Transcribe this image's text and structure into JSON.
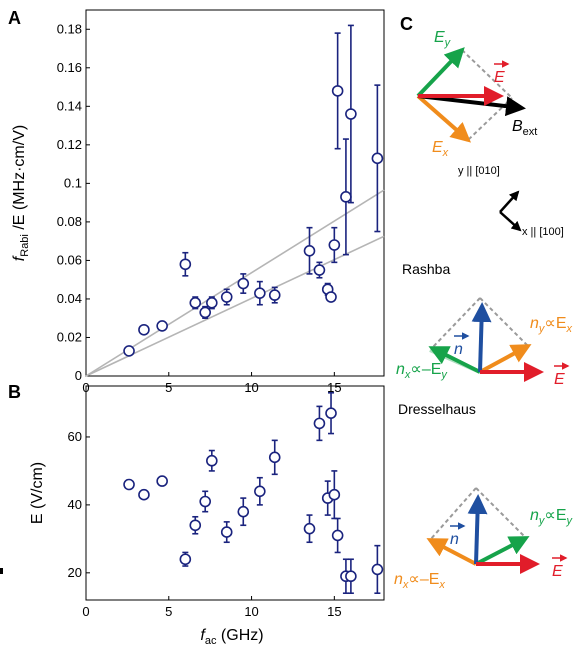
{
  "panel_labels": {
    "a": "A",
    "b": "B",
    "c": "C"
  },
  "chart_data": [
    {
      "type": "scatter",
      "panel": "A",
      "xlim": [
        0,
        18
      ],
      "ylim": [
        0,
        0.19
      ],
      "xticks": [
        0,
        5,
        10,
        15
      ],
      "yticks": [
        0,
        0.02,
        0.04,
        0.06,
        0.08,
        0.1,
        0.12,
        0.14,
        0.16,
        0.18
      ],
      "ytick_labels": [
        "0",
        "0.02",
        "0.04",
        "0.06",
        "0.08",
        "0.1",
        "0.12",
        "0.14",
        "0.16",
        "0.18"
      ],
      "xtick_labels": [
        "0",
        "5",
        "10",
        "15"
      ],
      "ylabel_pre": "f",
      "ylabel_sub": "Rabi",
      "ylabel_post": " /E (MHz·cm/V)",
      "points": [
        {
          "x": 2.6,
          "y": 0.013,
          "err": 0.0
        },
        {
          "x": 3.5,
          "y": 0.024,
          "err": 0.0
        },
        {
          "x": 4.6,
          "y": 0.026,
          "err": 0.0
        },
        {
          "x": 6.0,
          "y": 0.058,
          "err": 0.006
        },
        {
          "x": 6.6,
          "y": 0.038,
          "err": 0.003
        },
        {
          "x": 7.2,
          "y": 0.033,
          "err": 0.003
        },
        {
          "x": 7.6,
          "y": 0.038,
          "err": 0.003
        },
        {
          "x": 8.5,
          "y": 0.041,
          "err": 0.004
        },
        {
          "x": 9.5,
          "y": 0.048,
          "err": 0.005
        },
        {
          "x": 10.5,
          "y": 0.043,
          "err": 0.006
        },
        {
          "x": 11.4,
          "y": 0.042,
          "err": 0.004
        },
        {
          "x": 13.5,
          "y": 0.065,
          "err": 0.012
        },
        {
          "x": 14.1,
          "y": 0.055,
          "err": 0.004
        },
        {
          "x": 14.6,
          "y": 0.045,
          "err": 0.003
        },
        {
          "x": 14.8,
          "y": 0.041,
          "err": 0.002
        },
        {
          "x": 15.0,
          "y": 0.068,
          "err": 0.009
        },
        {
          "x": 15.2,
          "y": 0.148,
          "err": 0.03
        },
        {
          "x": 15.7,
          "y": 0.093,
          "err": 0.03
        },
        {
          "x": 16.0,
          "y": 0.136,
          "err": 0.046
        },
        {
          "x": 17.6,
          "y": 0.113,
          "err": 0.038
        }
      ],
      "lines": [
        {
          "x": [
            0,
            18
          ],
          "y": [
            0,
            0.0965
          ]
        },
        {
          "x": [
            0,
            18
          ],
          "y": [
            0,
            0.0725
          ]
        }
      ]
    },
    {
      "type": "scatter",
      "panel": "B",
      "xlim": [
        0,
        18
      ],
      "ylim": [
        12,
        75
      ],
      "xticks": [
        0,
        5,
        10,
        15
      ],
      "xtick_labels": [
        "0",
        "5",
        "10",
        "15"
      ],
      "yticks": [
        20,
        40,
        60
      ],
      "ytick_labels": [
        "20",
        "40",
        "60"
      ],
      "ylabel": "E (V/cm)",
      "xlabel_pre": "f",
      "xlabel_sub": "ac",
      "xlabel_post": " (GHz)",
      "points": [
        {
          "x": 2.6,
          "y": 46,
          "err": 0
        },
        {
          "x": 3.5,
          "y": 43,
          "err": 0
        },
        {
          "x": 4.6,
          "y": 47,
          "err": 0
        },
        {
          "x": 6.0,
          "y": 24,
          "err": 2
        },
        {
          "x": 6.6,
          "y": 34,
          "err": 2.5
        },
        {
          "x": 7.2,
          "y": 41,
          "err": 3
        },
        {
          "x": 7.6,
          "y": 53,
          "err": 3
        },
        {
          "x": 8.5,
          "y": 32,
          "err": 3
        },
        {
          "x": 9.5,
          "y": 38,
          "err": 4
        },
        {
          "x": 10.5,
          "y": 44,
          "err": 4
        },
        {
          "x": 11.4,
          "y": 54,
          "err": 5
        },
        {
          "x": 13.5,
          "y": 33,
          "err": 4
        },
        {
          "x": 14.1,
          "y": 64,
          "err": 5
        },
        {
          "x": 14.6,
          "y": 42,
          "err": 5
        },
        {
          "x": 14.8,
          "y": 67,
          "err": 6
        },
        {
          "x": 15.0,
          "y": 43,
          "err": 7
        },
        {
          "x": 15.2,
          "y": 31,
          "err": 5
        },
        {
          "x": 15.7,
          "y": 19,
          "err": 5
        },
        {
          "x": 16.0,
          "y": 19,
          "err": 5
        },
        {
          "x": 17.6,
          "y": 21,
          "err": 7
        }
      ]
    }
  ],
  "diagram": {
    "colors": {
      "green": "#16a34a",
      "red": "#e11d2a",
      "orange": "#f08c1c",
      "blue": "#1f4fa0",
      "black": "#000000",
      "gray": "#9a9a9a",
      "marker": "#1a237e"
    },
    "top": {
      "ey": "E",
      "ey_sub": "y",
      "ex": "E",
      "ex_sub": "x",
      "e": "E",
      "bext": "B",
      "bext_sub": "ext",
      "y_axis": "y || [010]",
      "x_axis": "x || [100]"
    },
    "rashba": {
      "title": "Rashba",
      "n": "n",
      "ny_label": "n",
      "ny_sub": "y",
      "ny_prop": "∝E",
      "ny_sub2": "x",
      "nx_label": "n",
      "nx_sub": "x",
      "nx_prop": "∝–E",
      "nx_sub2": "y",
      "e": "E"
    },
    "dresselhaus": {
      "title": "Dresselhaus",
      "n": "n",
      "ny_label": "n",
      "ny_sub": "y",
      "ny_prop": "∝E",
      "ny_sub2": "y",
      "nx_label": "n",
      "nx_sub": "x",
      "nx_prop": "∝–E",
      "nx_sub2": "x",
      "e": "E"
    }
  }
}
